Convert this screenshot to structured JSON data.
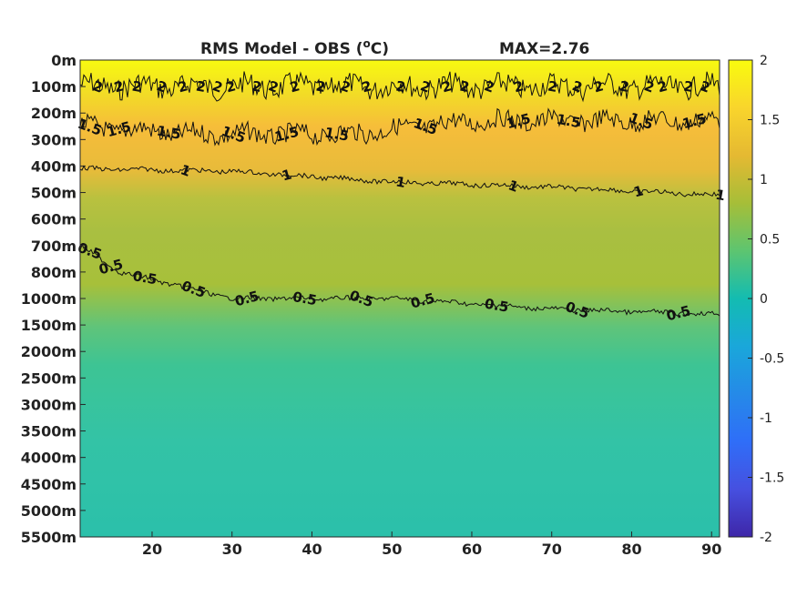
{
  "chart_data": {
    "type": "heatmap",
    "title": "RMS Model - OBS (",
    "title_superscript": "o",
    "title_unit_suffix": "C)",
    "max_label": "MAX=2.76",
    "x_ticks": [
      20,
      30,
      40,
      50,
      60,
      70,
      80,
      90
    ],
    "xlim": [
      11,
      91
    ],
    "y_tick_labels": [
      "0m",
      "100m",
      "200m",
      "300m",
      "400m",
      "500m",
      "600m",
      "700m",
      "800m",
      "1000m",
      "1500m",
      "2000m",
      "2500m",
      "3000m",
      "3500m",
      "4000m",
      "4500m",
      "5000m",
      "5500m"
    ],
    "colorbar": {
      "ticks": [
        2,
        1.5,
        1,
        0.5,
        0,
        -0.5,
        -1,
        -1.5,
        -2
      ],
      "tick_labels": [
        "2",
        "1.5",
        "1",
        "0.5",
        "0",
        "-0.5",
        "-1",
        "-1.5",
        "-2"
      ],
      "range": [
        -2,
        2
      ],
      "colormap": "parula"
    },
    "contours": [
      {
        "level": 2,
        "label": "2",
        "depth_profile": [
          {
            "x": 11,
            "depth": "100m"
          },
          {
            "x": 30,
            "depth": "100m"
          },
          {
            "x": 50,
            "depth": "100m"
          },
          {
            "x": 70,
            "depth": "100m"
          },
          {
            "x": 91,
            "depth": "100m"
          }
        ],
        "label_x": [
          13,
          16,
          18,
          21,
          24,
          26,
          28,
          30,
          33,
          35,
          38,
          41,
          44,
          47,
          51,
          54,
          57,
          59,
          62,
          66,
          70,
          73,
          76,
          79,
          82,
          84,
          87,
          89
        ]
      },
      {
        "level": 1.5,
        "label": "1.5",
        "depth_profile": [
          {
            "x": 11,
            "depth": "250m"
          },
          {
            "x": 25,
            "depth": "280m"
          },
          {
            "x": 45,
            "depth": "280m"
          },
          {
            "x": 60,
            "depth": "230m"
          },
          {
            "x": 91,
            "depth": "230m"
          }
        ],
        "label_x": [
          12,
          16,
          22,
          30,
          37,
          43,
          54,
          66,
          72,
          81,
          88
        ]
      },
      {
        "level": 1,
        "label": "1",
        "depth_profile": [
          {
            "x": 11,
            "depth": "410m"
          },
          {
            "x": 30,
            "depth": "420m"
          },
          {
            "x": 50,
            "depth": "460m"
          },
          {
            "x": 70,
            "depth": "480m"
          },
          {
            "x": 91,
            "depth": "510m"
          }
        ],
        "label_x": [
          24,
          37,
          51,
          65,
          81,
          91
        ]
      },
      {
        "level": 0.5,
        "label": "0.5",
        "depth_profile": [
          {
            "x": 11,
            "depth": "700m"
          },
          {
            "x": 16,
            "depth": "800m"
          },
          {
            "x": 30,
            "depth": "1000m"
          },
          {
            "x": 50,
            "depth": "1000m"
          },
          {
            "x": 70,
            "depth": "1200m"
          },
          {
            "x": 91,
            "depth": "1300m"
          }
        ],
        "label_x": [
          12,
          15,
          19,
          25,
          32,
          39,
          46,
          54,
          63,
          73,
          86
        ]
      }
    ],
    "field_description_values": {
      "surface_rms": 2,
      "deep_rms": 0.3
    }
  }
}
